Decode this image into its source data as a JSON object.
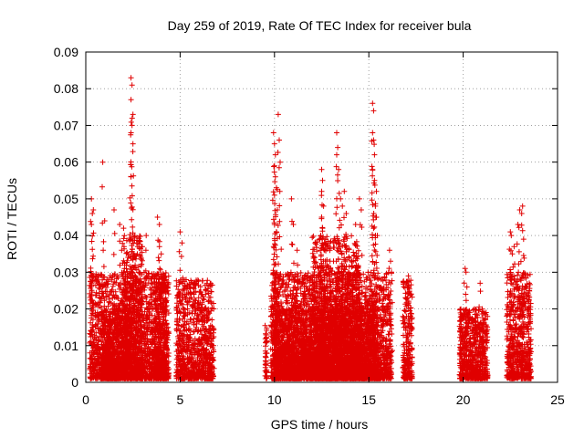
{
  "chart_data": {
    "type": "scatter",
    "title": "Day 259 of 2019, Rate Of TEC Index for receiver bula",
    "xlabel": "GPS time / hours",
    "ylabel": "ROTI / TECUs",
    "xlim": [
      0,
      25
    ],
    "ylim": [
      0,
      0.09
    ],
    "x_ticks": [
      "0",
      "5",
      "10",
      "15",
      "20",
      "25"
    ],
    "y_ticks": [
      "0",
      "0.01",
      "0.02",
      "0.03",
      "0.04",
      "0.05",
      "0.06",
      "0.07",
      "0.08",
      "0.09"
    ],
    "grid": true,
    "marker": "+",
    "color": "#e00000",
    "series": [
      {
        "clusters": [
          {
            "x": [
              0.2,
              4.4
            ],
            "ymax": 0.03
          },
          {
            "x": [
              0.8,
              2.3
            ],
            "ymax": 0.02
          },
          {
            "x": [
              2.0,
              3.0
            ],
            "ymax": 0.04
          },
          {
            "x": [
              3.5,
              4.3
            ],
            "ymax": 0.03
          },
          {
            "x": [
              4.8,
              6.8
            ],
            "ymax": 0.028
          },
          {
            "x": [
              9.5,
              9.6
            ],
            "ymax": 0.017
          },
          {
            "x": [
              9.8,
              16.2
            ],
            "ymax": 0.03
          },
          {
            "x": [
              10.0,
              15.5
            ],
            "ymax": 0.02
          },
          {
            "x": [
              12.0,
              14.5
            ],
            "ymax": 0.04
          },
          {
            "x": [
              16.8,
              17.3
            ],
            "ymax": 0.028
          },
          {
            "x": [
              19.8,
              21.3
            ],
            "ymax": 0.02
          },
          {
            "x": [
              22.3,
              23.6
            ],
            "ymax": 0.03
          }
        ],
        "peaks": [
          [
            0.3,
            0.05
          ],
          [
            0.35,
            0.046
          ],
          [
            0.3,
            0.043
          ],
          [
            0.4,
            0.047
          ],
          [
            0.9,
            0.06
          ],
          [
            1.0,
            0.044
          ],
          [
            1.5,
            0.047
          ],
          [
            1.8,
            0.043
          ],
          [
            1.9,
            0.036
          ],
          [
            2.0,
            0.042
          ],
          [
            2.4,
            0.083
          ],
          [
            2.45,
            0.081
          ],
          [
            2.4,
            0.077
          ],
          [
            2.5,
            0.073
          ],
          [
            2.45,
            0.07
          ],
          [
            2.4,
            0.068
          ],
          [
            2.5,
            0.065
          ],
          [
            2.4,
            0.056
          ],
          [
            2.6,
            0.04
          ],
          [
            2.7,
            0.038
          ],
          [
            3.0,
            0.037
          ],
          [
            3.2,
            0.04
          ],
          [
            3.8,
            0.045
          ],
          [
            3.9,
            0.043
          ],
          [
            3.9,
            0.037
          ],
          [
            4.0,
            0.035
          ],
          [
            5.0,
            0.041
          ],
          [
            5.1,
            0.038
          ],
          [
            9.95,
            0.068
          ],
          [
            10.0,
            0.065
          ],
          [
            10.05,
            0.062
          ],
          [
            10.0,
            0.059
          ],
          [
            10.05,
            0.056
          ],
          [
            10.1,
            0.053
          ],
          [
            10.0,
            0.051
          ],
          [
            10.15,
            0.047
          ],
          [
            10.2,
            0.073
          ],
          [
            10.25,
            0.066
          ],
          [
            10.3,
            0.06
          ],
          [
            10.0,
            0.043
          ],
          [
            9.95,
            0.037
          ],
          [
            10.1,
            0.041
          ],
          [
            10.9,
            0.05
          ],
          [
            11.0,
            0.043
          ],
          [
            11.2,
            0.036
          ],
          [
            12.5,
            0.058
          ],
          [
            12.55,
            0.055
          ],
          [
            12.5,
            0.052
          ],
          [
            12.6,
            0.048
          ],
          [
            12.5,
            0.045
          ],
          [
            12.55,
            0.042
          ],
          [
            12.45,
            0.04
          ],
          [
            13.3,
            0.068
          ],
          [
            13.35,
            0.064
          ],
          [
            13.3,
            0.062
          ],
          [
            13.4,
            0.058
          ],
          [
            13.5,
            0.05
          ],
          [
            13.6,
            0.048
          ],
          [
            13.7,
            0.052
          ],
          [
            13.8,
            0.046
          ],
          [
            14.5,
            0.05
          ],
          [
            14.6,
            0.047
          ],
          [
            14.3,
            0.043
          ],
          [
            15.2,
            0.076
          ],
          [
            15.25,
            0.074
          ],
          [
            15.2,
            0.068
          ],
          [
            15.25,
            0.066
          ],
          [
            15.3,
            0.062
          ],
          [
            15.2,
            0.058
          ],
          [
            15.3,
            0.055
          ],
          [
            15.4,
            0.052
          ],
          [
            15.35,
            0.048
          ],
          [
            15.4,
            0.045
          ],
          [
            15.25,
            0.042
          ],
          [
            15.45,
            0.04
          ],
          [
            16.1,
            0.036
          ],
          [
            16.15,
            0.033
          ],
          [
            16.2,
            0.03
          ],
          [
            17.1,
            0.029
          ],
          [
            20.1,
            0.031
          ],
          [
            20.15,
            0.03
          ],
          [
            20.6,
            0.02
          ],
          [
            20.9,
            0.027
          ],
          [
            22.5,
            0.041
          ],
          [
            22.55,
            0.04
          ],
          [
            22.6,
            0.035
          ],
          [
            22.7,
            0.037
          ],
          [
            23.0,
            0.047
          ],
          [
            23.1,
            0.046
          ],
          [
            23.15,
            0.048
          ],
          [
            22.9,
            0.043
          ],
          [
            23.2,
            0.039
          ],
          [
            23.5,
            0.027
          ],
          [
            23.5,
            0.025
          ]
        ]
      }
    ]
  }
}
